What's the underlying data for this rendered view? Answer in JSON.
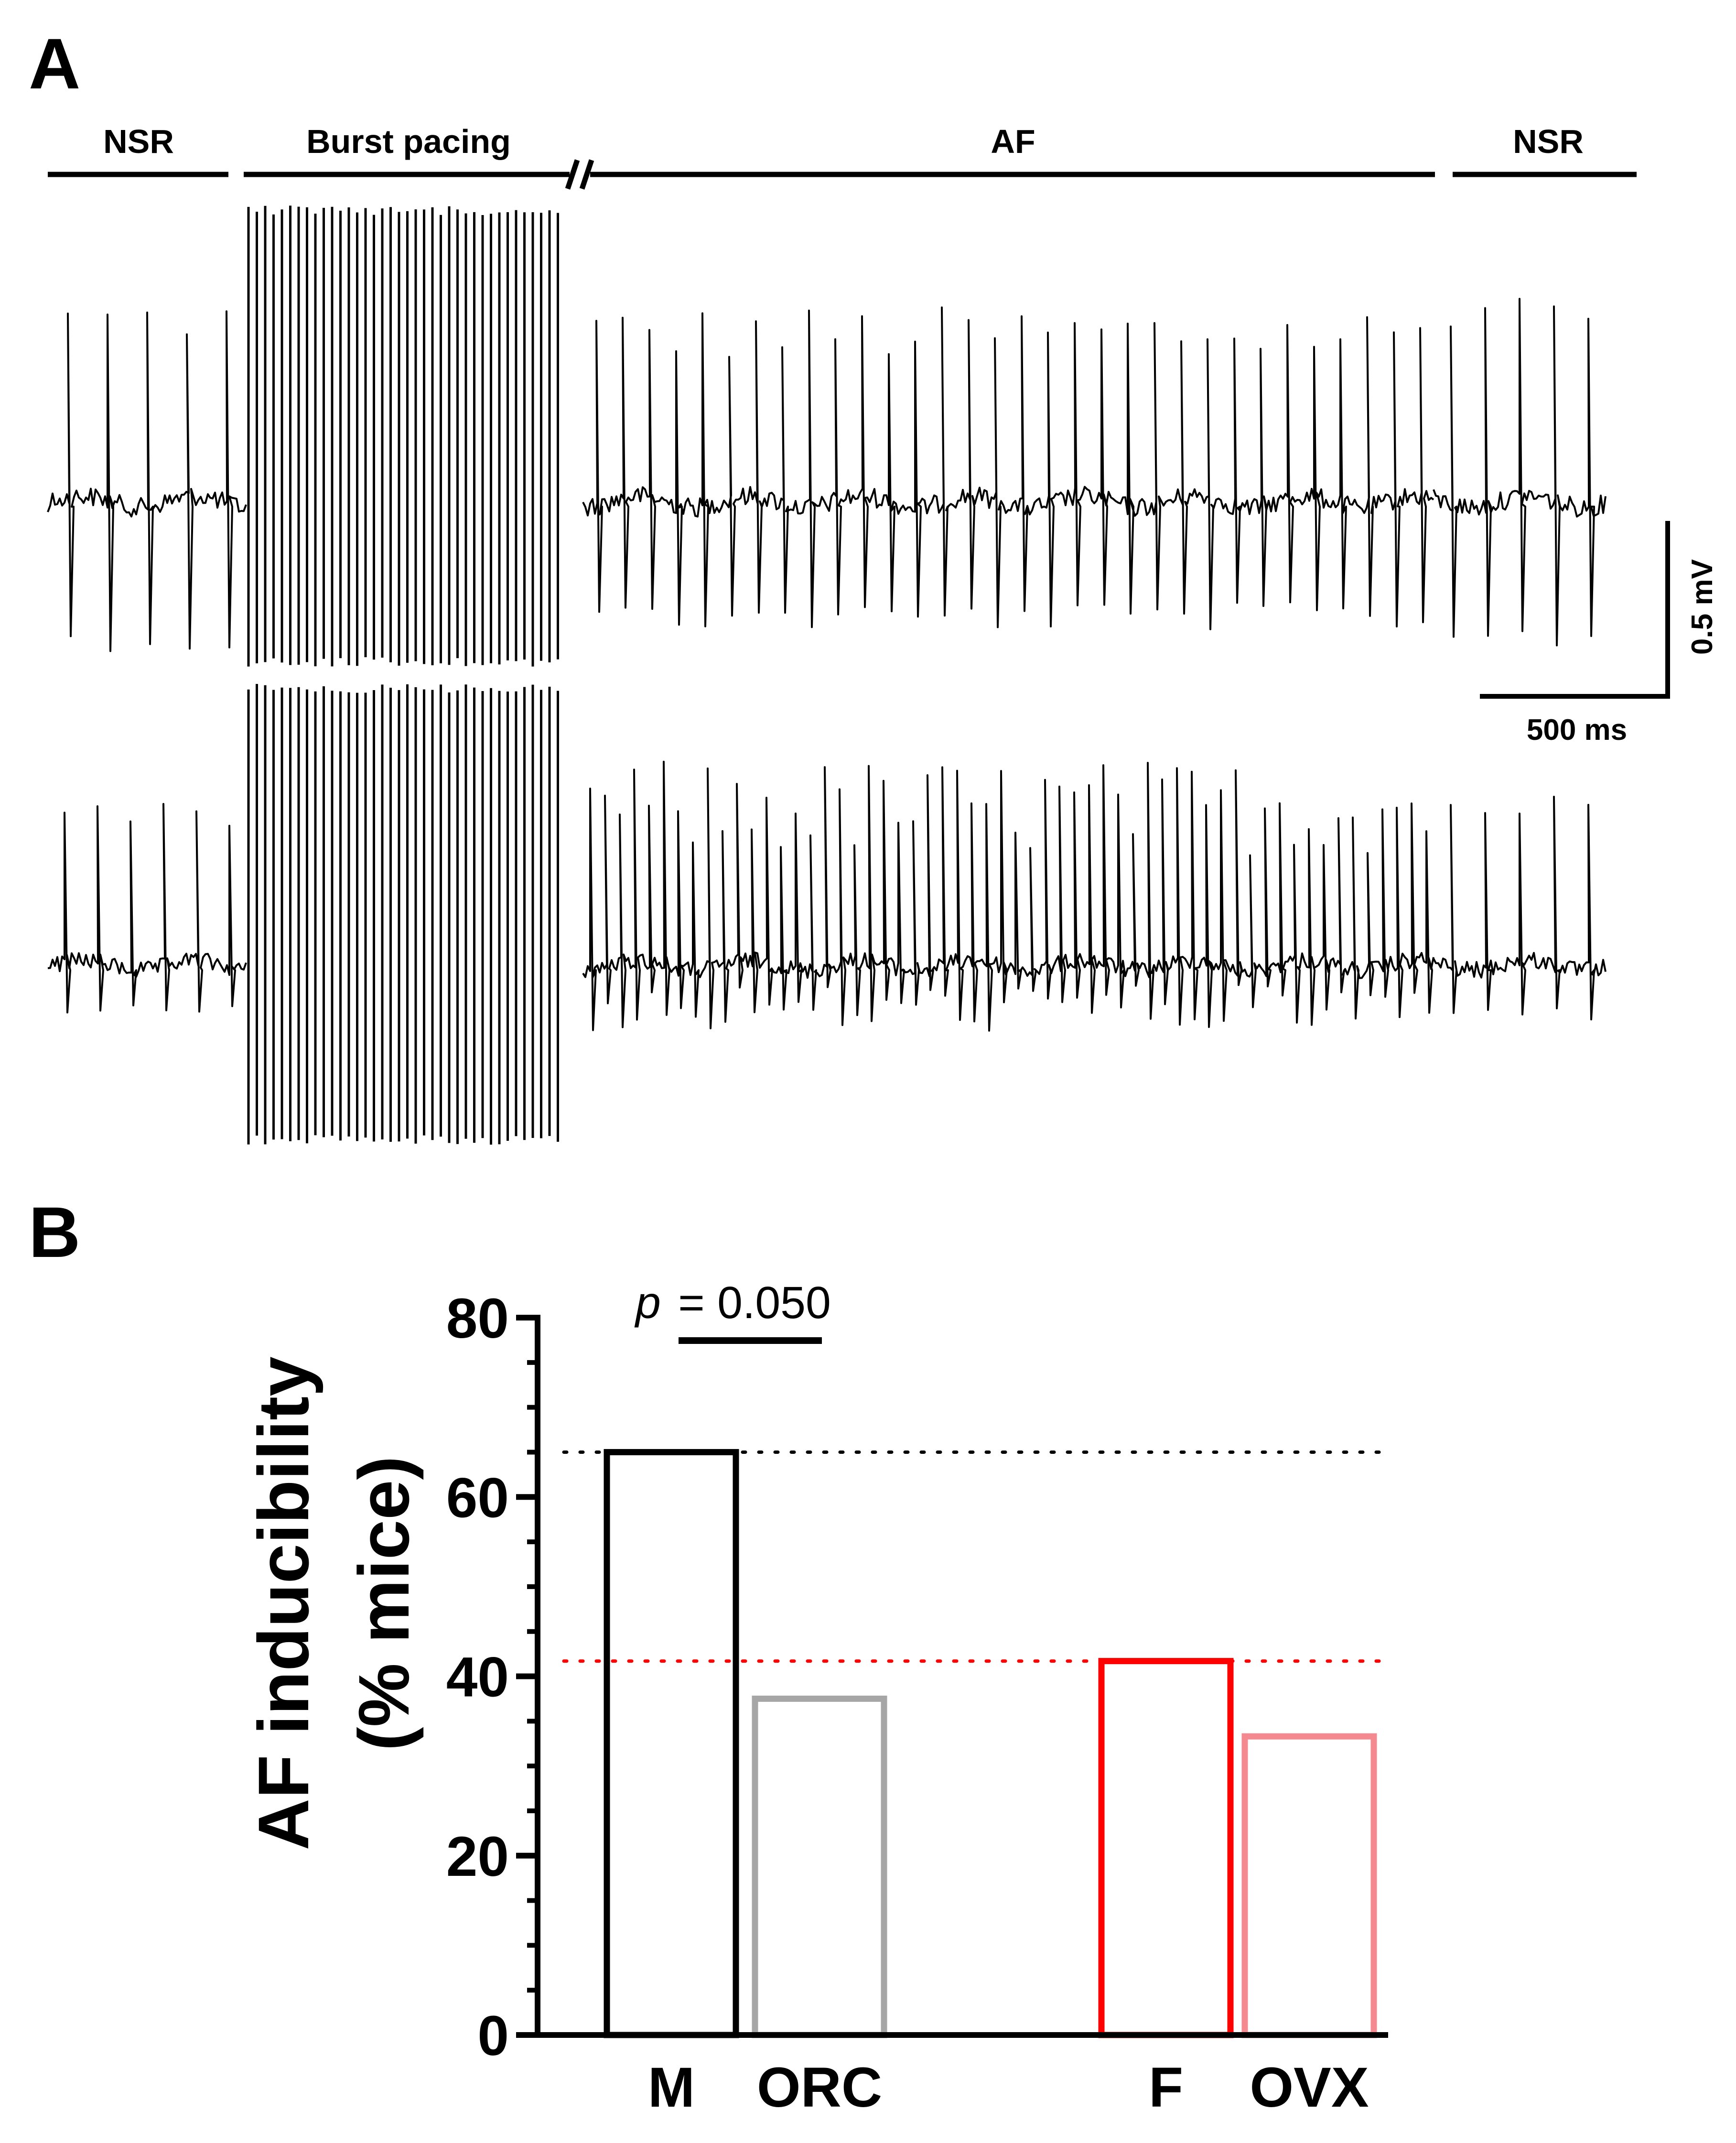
{
  "panel_a": {
    "label": "A",
    "segments": [
      "NSR",
      "Burst pacing",
      "AF",
      "NSR"
    ],
    "scale_bar": {
      "voltage": "0.5 mV",
      "time": "500 ms"
    }
  },
  "panel_b": {
    "label": "B"
  },
  "colors": {
    "axis": "#000000",
    "M": "#000000",
    "ORC": "#a6a6a6",
    "F": "#ff0000",
    "OVX": "#f4898f",
    "ref_male": "#000000",
    "ref_female": "#ff0000"
  },
  "chart_data": {
    "type": "bar",
    "categories": [
      "M",
      "ORC",
      "F",
      "OVX"
    ],
    "values": [
      65,
      37.5,
      41.7,
      33.3
    ],
    "ylabel": "AF inducibility\n(% mice)",
    "ylim": [
      0,
      80
    ],
    "yticks": [
      0,
      20,
      40,
      60,
      80
    ],
    "grid": false,
    "reference_lines": [
      {
        "value": 65,
        "style": "dotted",
        "color": "#000000"
      },
      {
        "value": 41.7,
        "style": "dotted",
        "color": "#ff0000"
      }
    ],
    "annotation": {
      "p_label": "p",
      "text": "= 0.050",
      "between": [
        "M",
        "ORC"
      ]
    }
  }
}
